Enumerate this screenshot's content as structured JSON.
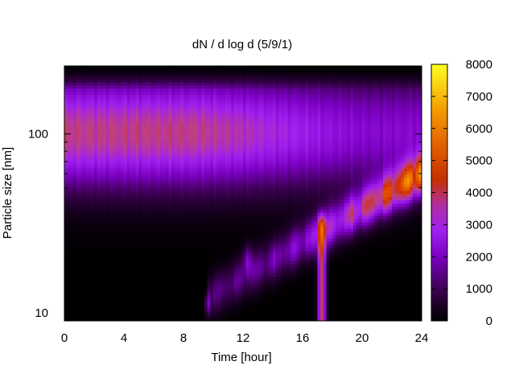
{
  "chart_data": {
    "type": "heatmap",
    "title": "dN / d log d (5/9/1)",
    "xlabel": "Time [hour]",
    "ylabel": "Particle size [nm]",
    "xlim": [
      0,
      24
    ],
    "x_ticks": [
      "0",
      "4",
      "8",
      "12",
      "16",
      "20",
      "24"
    ],
    "y_scale": "log",
    "ylim": [
      9,
      240
    ],
    "y_ticks": [
      "10",
      "100"
    ],
    "colorbar": {
      "range": [
        0,
        8000
      ],
      "ticks": [
        "0",
        "1000",
        "2000",
        "3000",
        "4000",
        "5000",
        "6000",
        "7000",
        "8000"
      ],
      "palette": [
        "#000000",
        "#3a0050",
        "#7a00c0",
        "#a020f0",
        "#c04080",
        "#d03000",
        "#e86000",
        "#f8a000",
        "#ffe000",
        "#ffff20"
      ]
    },
    "features": [
      {
        "name": "background mode",
        "time_range": [
          0,
          9
        ],
        "size_nm": 100,
        "level": 3000
      },
      {
        "name": "nucleation event",
        "time_range": [
          9.5,
          24
        ],
        "size_nm_start": 12,
        "size_nm_end": 60,
        "level_peak": 6500
      },
      {
        "name": "burst",
        "time_hour": 17.3,
        "size_range_nm": [
          10,
          30
        ],
        "level": 4500
      }
    ],
    "grid": false,
    "legend": "colorbar-right"
  }
}
